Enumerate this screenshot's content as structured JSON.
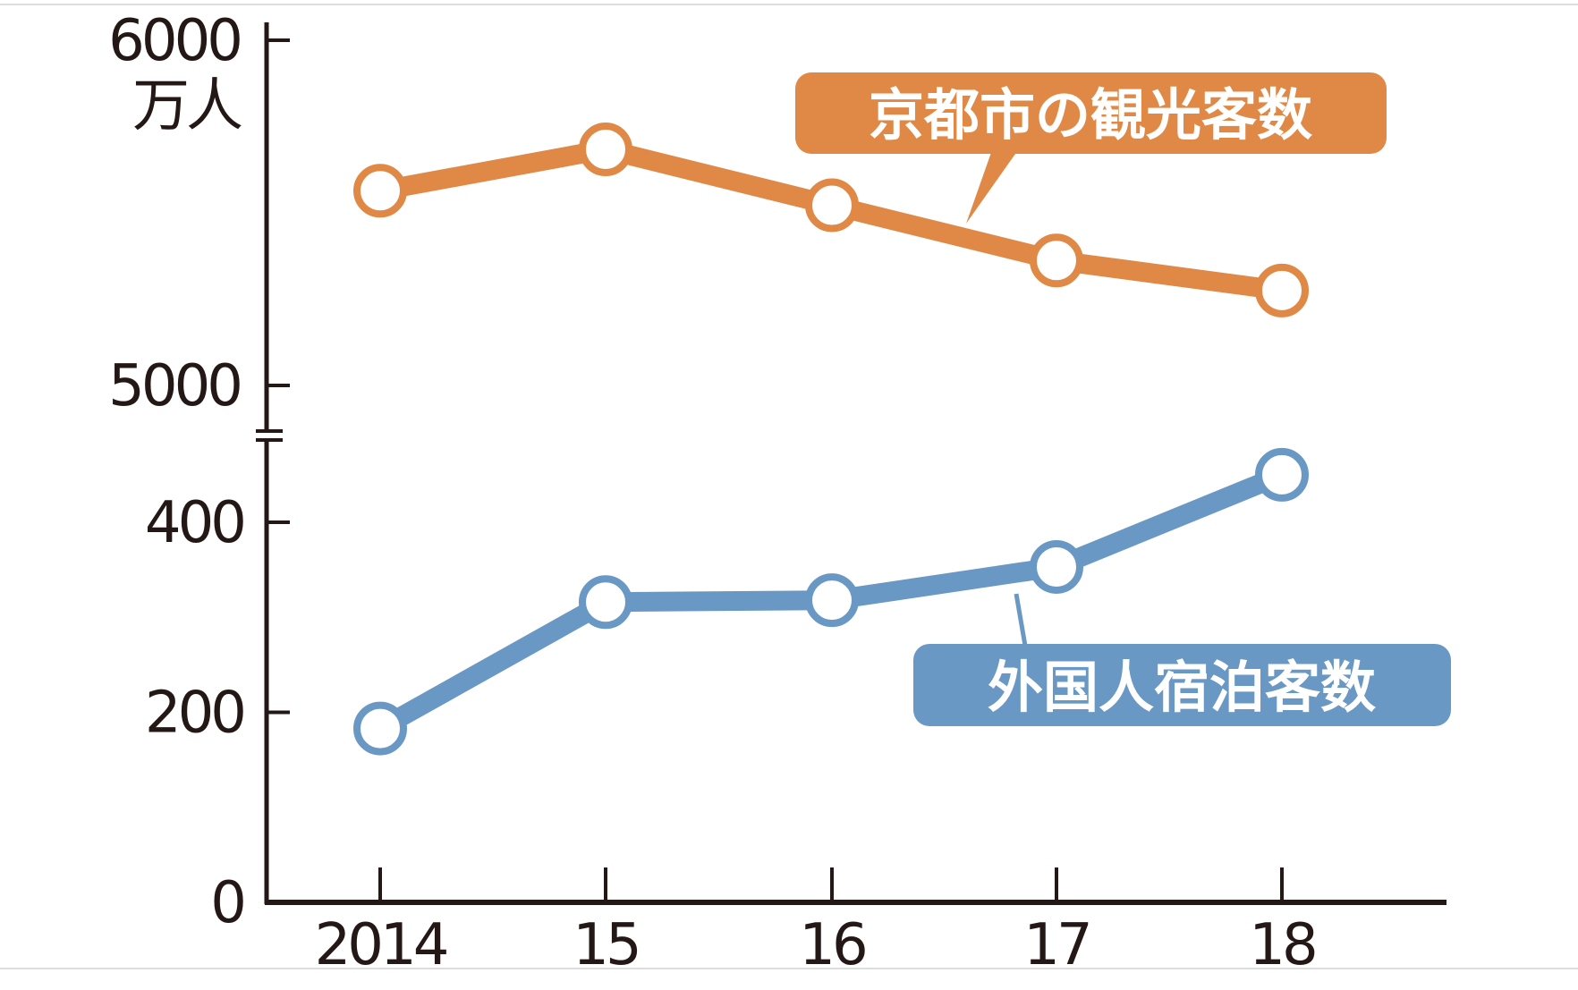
{
  "chart_data": {
    "type": "line",
    "title": "",
    "unit_label": "万人",
    "x": [
      "2014",
      "15",
      "16",
      "17",
      "18"
    ],
    "broken_y_axis": true,
    "upper_axis": {
      "ylim": [
        5000,
        6000
      ],
      "ticks": [
        "5000",
        "6000"
      ]
    },
    "lower_axis": {
      "ylim": [
        0,
        450
      ],
      "ticks": [
        "0",
        "200",
        "400"
      ]
    },
    "grid": false,
    "series": [
      {
        "name": "京都市の観光客数",
        "axis": "upper",
        "color": "#E08845",
        "values": [
          5564,
          5684,
          5522,
          5362,
          5275
        ]
      },
      {
        "name": "外国人宿泊客数",
        "axis": "lower",
        "color": "#6A98C4",
        "values": [
          183,
          316,
          318,
          353,
          450
        ]
      }
    ]
  }
}
